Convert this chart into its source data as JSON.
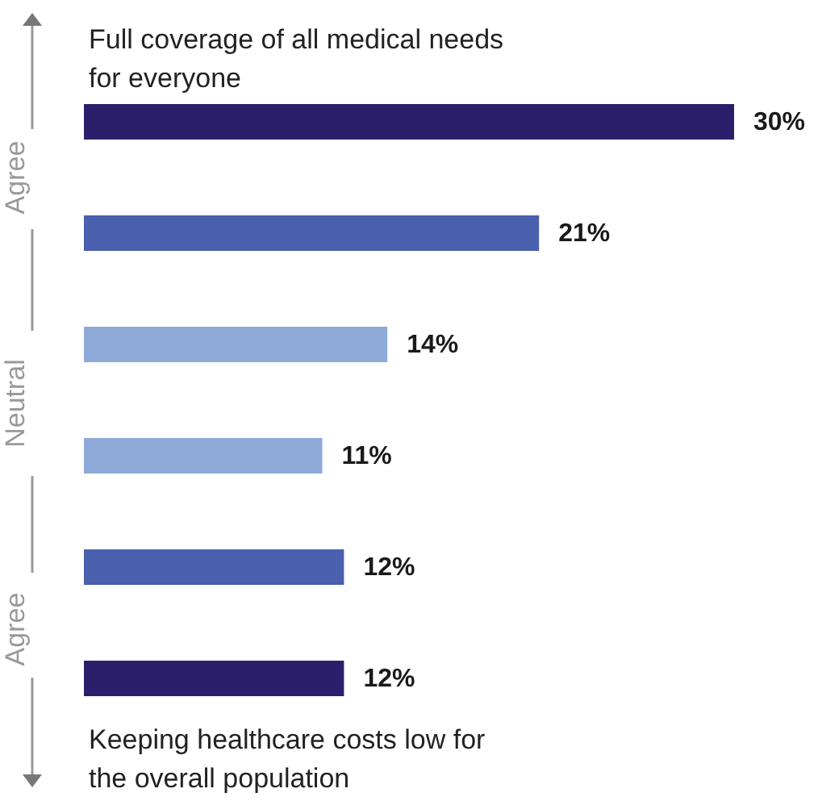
{
  "chart_data": {
    "type": "bar",
    "orientation": "horizontal",
    "categories": [
      null,
      null,
      null,
      null,
      null,
      null
    ],
    "values": [
      30,
      21,
      14,
      11,
      12,
      12
    ],
    "colors": [
      "#2b1f6b",
      "#4a5fae",
      "#8fa9d9",
      "#8fa9d9",
      "#4a5fae",
      "#2b1f6b"
    ],
    "value_labels": [
      "30%",
      "21%",
      "14%",
      "11%",
      "12%",
      "12%"
    ],
    "annotations": [
      "Full coverage of all medical needs for everyone",
      "Keeping healthcare costs low for the overall population",
      "Agree",
      "Neutral",
      "Agree"
    ]
  }
}
